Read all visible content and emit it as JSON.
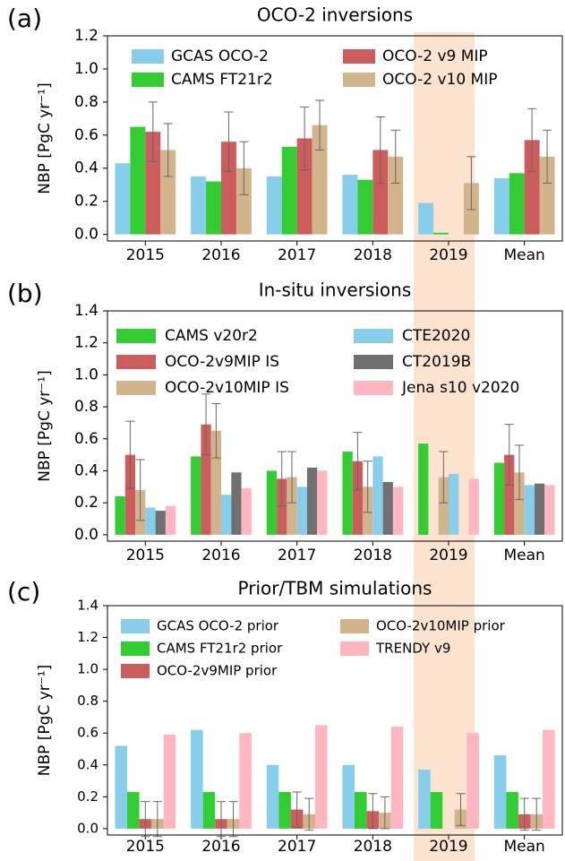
{
  "chart_data": [
    {
      "type": "bar",
      "label": "(a)",
      "title": "OCO-2 inversions",
      "y_label": "NBP [PgC yr⁻¹]",
      "categories": [
        "2015",
        "2016",
        "2017",
        "2018",
        "2019",
        "Mean"
      ],
      "series": [
        {
          "name": "GCAS OCO-2",
          "color": "#87ceeb",
          "values": [
            0.43,
            0.35,
            0.35,
            0.36,
            0.19,
            0.34
          ]
        },
        {
          "name": "CAMS FT21r2",
          "color": "#33cc33",
          "values": [
            0.65,
            0.32,
            0.53,
            0.33,
            0.01,
            0.37
          ]
        },
        {
          "name": "OCO-2 v9 MIP",
          "color": "#cd5c5c",
          "values": [
            0.62,
            0.56,
            0.58,
            0.51,
            null,
            0.57
          ],
          "errors": [
            0.18,
            0.18,
            0.19,
            0.2,
            null,
            0.19
          ]
        },
        {
          "name": "OCO-2 v10 MIP",
          "color": "#d2b48c",
          "values": [
            0.51,
            0.4,
            0.66,
            0.47,
            0.31,
            0.47
          ],
          "errors": [
            0.16,
            0.16,
            0.15,
            0.16,
            0.16,
            0.16
          ]
        }
      ],
      "ylim": [
        -0.04,
        1.2
      ],
      "yticks": [
        {
          "value": 0,
          "label": "0.0"
        },
        0.2,
        0.4,
        0.6,
        0.8,
        {
          "value": 1,
          "label": "1.0"
        },
        1.2
      ]
    },
    {
      "type": "bar",
      "label": "(b)",
      "title": "In-situ inversions",
      "y_label": "NBP [PgC yr⁻¹]",
      "categories": [
        "2015",
        "2016",
        "2017",
        "2018",
        "2019",
        "Mean"
      ],
      "series": [
        {
          "name": "CAMS v20r2",
          "color": "#33cc33",
          "values": [
            0.24,
            0.49,
            0.4,
            0.52,
            0.57,
            0.45
          ]
        },
        {
          "name": "OCO-2v9MIP IS",
          "color": "#cd5c5c",
          "values": [
            0.5,
            0.69,
            0.35,
            0.46,
            null,
            0.5
          ],
          "errors": [
            0.21,
            0.19,
            0.17,
            0.18,
            null,
            0.19
          ]
        },
        {
          "name": "OCO-2v10MIP IS",
          "color": "#d2b48c",
          "values": [
            0.28,
            0.65,
            0.36,
            0.3,
            0.36,
            0.39
          ],
          "errors": [
            0.19,
            0.17,
            0.16,
            0.16,
            0.16,
            0.17
          ]
        },
        {
          "name": "CTE2020",
          "color": "#87ceeb",
          "values": [
            0.17,
            0.25,
            0.3,
            0.49,
            0.38,
            0.31
          ]
        },
        {
          "name": "CT2019B",
          "color": "#707070",
          "values": [
            0.15,
            0.39,
            0.42,
            0.33,
            null,
            0.32
          ]
        },
        {
          "name": "Jena s10 v2020",
          "color": "#ffb6c1",
          "values": [
            0.18,
            0.29,
            0.4,
            0.3,
            0.35,
            0.31
          ]
        }
      ],
      "ylim": [
        -0.04,
        1.4
      ],
      "yticks": [
        {
          "value": 0,
          "label": "0.0"
        },
        0.2,
        0.4,
        0.6,
        0.8,
        {
          "value": 1,
          "label": "1.0"
        },
        1.2,
        1.4
      ]
    },
    {
      "type": "bar",
      "label": "(c)",
      "title": "Prior/TBM simulations",
      "y_label": "NBP [PgC yr⁻¹]",
      "categories": [
        "2015",
        "2016",
        "2017",
        "2018",
        "2019",
        "Mean"
      ],
      "series": [
        {
          "name": "GCAS OCO-2 prior",
          "color": "#87ceeb",
          "values": [
            0.52,
            0.62,
            0.4,
            0.4,
            0.37,
            0.46
          ]
        },
        {
          "name": "CAMS FT21r2 prior",
          "color": "#33cc33",
          "values": [
            0.23,
            0.23,
            0.23,
            0.23,
            0.23,
            0.23
          ]
        },
        {
          "name": "OCO-2v9MIP prior",
          "color": "#cd5c5c",
          "values": [
            0.06,
            0.06,
            0.12,
            0.11,
            null,
            0.09
          ],
          "errors": [
            0.11,
            0.11,
            0.11,
            0.11,
            null,
            0.1
          ]
        },
        {
          "name": "OCO-2v10MIP prior",
          "color": "#d2b48c",
          "values": [
            0.06,
            0.06,
            0.09,
            0.1,
            0.12,
            0.09
          ],
          "errors": [
            0.11,
            0.11,
            0.1,
            0.1,
            0.1,
            0.1
          ]
        },
        {
          "name": "TRENDY v9",
          "color": "#ffb6c1",
          "values": [
            0.59,
            0.6,
            0.65,
            0.64,
            0.6,
            0.62
          ]
        }
      ],
      "ylim": [
        -0.04,
        1.4
      ],
      "yticks": [
        {
          "value": 0,
          "label": "0.0"
        },
        0.2,
        0.4,
        0.6,
        0.8,
        {
          "value": 1,
          "label": "1.0"
        },
        1.2,
        1.4
      ]
    }
  ]
}
